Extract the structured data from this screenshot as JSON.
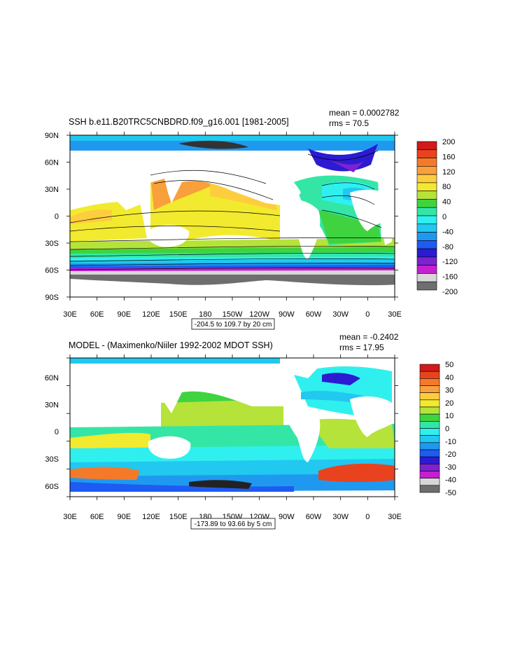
{
  "chart_data": [
    {
      "type": "heatmap",
      "title": "SSH b.e11.B20TRC5CNBDRD.f09_g16.001 [1981-2005]",
      "mean_label": "mean = 0.0002782",
      "rms_label": "rms = 70.5",
      "info_box": "-204.5 to 109.7 by 20 cm",
      "x_ticks": [
        "30E",
        "60E",
        "90E",
        "120E",
        "150E",
        "180",
        "150W",
        "120W",
        "90W",
        "60W",
        "30W",
        "0",
        "30E"
      ],
      "y_ticks": [
        "90N",
        "60N",
        "30N",
        "0",
        "30S",
        "60S",
        "90S"
      ],
      "colorbar": {
        "levels": [
          "200",
          "160",
          "120",
          "80",
          "40",
          "0",
          "-40",
          "-80",
          "-120",
          "-160",
          "-200"
        ],
        "colors": [
          "#d21a1a",
          "#e8431e",
          "#f47a2a",
          "#f9a03c",
          "#fdcd3e",
          "#f2ea2e",
          "#b5e33a",
          "#3fd43f",
          "#34e6a6",
          "#2ff0ee",
          "#21c8f0",
          "#1f99ef",
          "#1d5bf3",
          "#2c1bd2",
          "#7d22d0",
          "#c51fd0",
          "#d7d7d7",
          "#6e6e6e"
        ]
      }
    },
    {
      "type": "heatmap",
      "title": "MODEL - (Maximenko/Niiler 1992-2002 MDOT SSH)",
      "mean_label": "mean = -0.2402",
      "rms_label": "rms = 17.95",
      "info_box": "-173.89 to 93.66 by 5 cm",
      "x_ticks": [
        "30E",
        "60E",
        "90E",
        "120E",
        "150E",
        "180",
        "150W",
        "120W",
        "90W",
        "60W",
        "30W",
        "0",
        "30E"
      ],
      "y_ticks": [
        "60N",
        "30N",
        "0",
        "30S",
        "60S"
      ],
      "colorbar": {
        "levels": [
          "50",
          "40",
          "30",
          "20",
          "10",
          "0",
          "-10",
          "-20",
          "-30",
          "-40",
          "-50"
        ],
        "colors": [
          "#d21a1a",
          "#e8431e",
          "#f47a2a",
          "#f9a03c",
          "#fdcd3e",
          "#f2ea2e",
          "#b5e33a",
          "#3fd43f",
          "#34e6a6",
          "#2ff0ee",
          "#21c8f0",
          "#1f99ef",
          "#1d5bf3",
          "#2c1bd2",
          "#7d22d0",
          "#c51fd0",
          "#d7d7d7",
          "#6e6e6e"
        ]
      }
    }
  ]
}
